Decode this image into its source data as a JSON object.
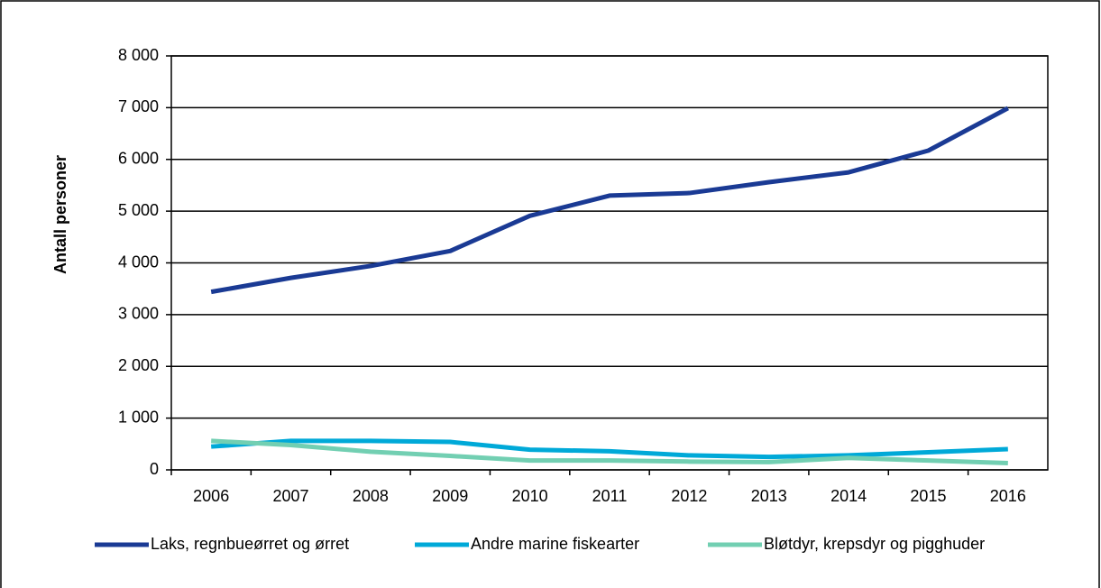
{
  "chart_data": {
    "type": "line",
    "y_label": "Antall personer",
    "categories": [
      "2006",
      "2007",
      "2008",
      "2009",
      "2010",
      "2011",
      "2012",
      "2013",
      "2014",
      "2015",
      "2016"
    ],
    "series": [
      {
        "name": "Laks, regnbueørret og ørret",
        "color": "#1a3a94",
        "values": [
          3440,
          3710,
          3940,
          4230,
          4910,
          5300,
          5350,
          5560,
          5750,
          6170,
          6990
        ]
      },
      {
        "name": "Andre marine fiskearter",
        "color": "#00a9d8",
        "values": [
          450,
          560,
          560,
          540,
          390,
          360,
          280,
          250,
          280,
          340,
          400
        ]
      },
      {
        "name": "Bløtdyr, krepsdyr og pigghuder",
        "color": "#72cfb2",
        "values": [
          560,
          480,
          350,
          270,
          180,
          180,
          160,
          150,
          230,
          180,
          130
        ]
      }
    ],
    "ylim": [
      0,
      8000
    ],
    "yticks": [
      0,
      {
        "value": 1000,
        "label": "1 000"
      },
      {
        "value": 2000,
        "label": "2 000"
      },
      {
        "value": 3000,
        "label": "3 000"
      },
      {
        "value": 4000,
        "label": "4 000"
      },
      {
        "value": 5000,
        "label": "5 000"
      },
      {
        "value": 6000,
        "label": "6 000"
      },
      {
        "value": 7000,
        "label": "7 000"
      },
      {
        "value": 8000,
        "label": "8 000"
      }
    ],
    "grid": true,
    "legend": "bottom"
  }
}
